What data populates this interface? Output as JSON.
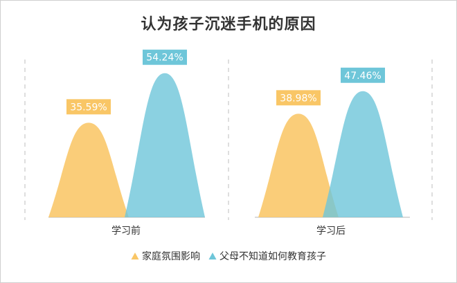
{
  "colors": {
    "series1": "#f9c666",
    "series2": "#6ec6d9",
    "text": "#333333",
    "axis": "#999999",
    "divider": "#c8c8c8"
  },
  "chart_data": {
    "type": "area",
    "title": "认为孩子沉迷手机的原因",
    "categories": [
      "学习前",
      "学习后"
    ],
    "series": [
      {
        "name": "家庭氛围影响",
        "values": [
          35.59,
          38.98
        ],
        "labels": [
          "35.59%",
          "38.98%"
        ],
        "color": "#f9c666"
      },
      {
        "name": "父母不知道如何教育孩子",
        "values": [
          54.24,
          47.46
        ],
        "labels": [
          "54.24%",
          "47.46%"
        ],
        "color": "#6ec6d9"
      }
    ],
    "legend": "bottom",
    "grid": false
  }
}
